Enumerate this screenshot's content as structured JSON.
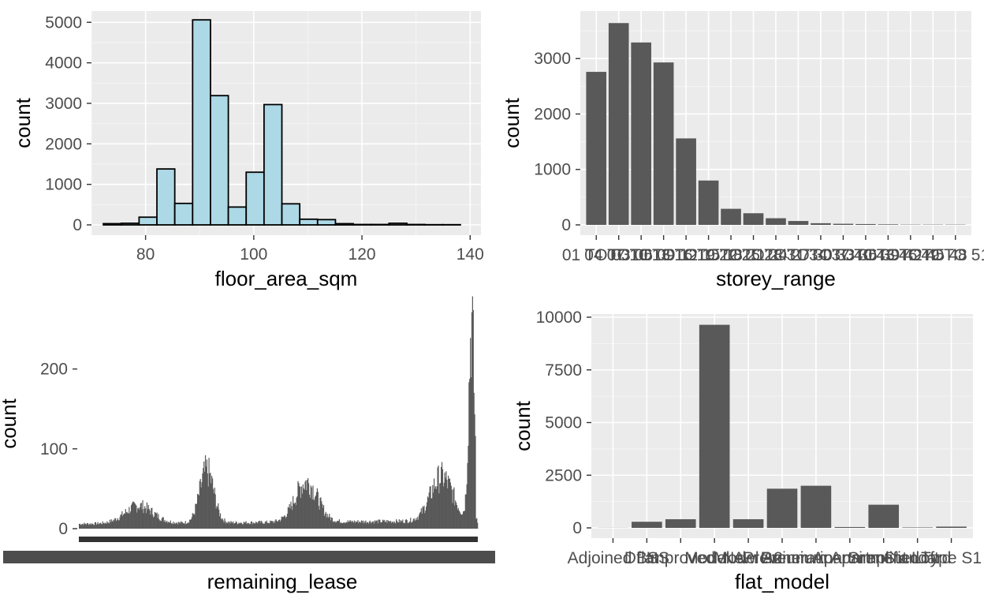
{
  "chart_data": [
    {
      "type": "bar",
      "subtype": "histogram",
      "xlabel": "floor_area_sqm",
      "ylabel": "count",
      "xlim": [
        70,
        142
      ],
      "ylim": [
        0,
        5200
      ],
      "x_ticks": [
        80,
        100,
        120,
        140
      ],
      "y_ticks": [
        0,
        1000,
        2000,
        3000,
        4000,
        5000
      ],
      "bin_width": 3.3,
      "bin_starts": [
        72.2,
        75.5,
        78.8,
        82.1,
        85.4,
        88.7,
        92.0,
        95.3,
        98.6,
        101.9,
        105.2,
        108.5,
        111.8,
        115.1,
        118.4,
        121.7,
        125.0,
        128.3,
        131.6,
        134.9
      ],
      "values": [
        30,
        40,
        190,
        1380,
        530,
        5060,
        3190,
        440,
        1300,
        2970,
        520,
        140,
        130,
        30,
        10,
        10,
        40,
        10,
        5,
        5
      ],
      "fill": "#add8e6",
      "stroke": "#000000",
      "grid": true
    },
    {
      "type": "bar",
      "xlabel": "storey_range",
      "ylabel": "count",
      "ylim": [
        0,
        3800
      ],
      "y_ticks": [
        0,
        1000,
        2000,
        3000
      ],
      "categories": [
        "01 TO 03",
        "04 TO 06",
        "07 TO 09",
        "10 TO 12",
        "13 TO 15",
        "16 TO 18",
        "19 TO 21",
        "22 TO 24",
        "25 TO 27",
        "28 TO 30",
        "31 TO 33",
        "34 TO 36",
        "37 TO 39",
        "40 TO 42",
        "43 TO 45",
        "46 TO 48",
        "49 TO 51"
      ],
      "values": [
        2760,
        3640,
        3290,
        2930,
        1560,
        800,
        290,
        210,
        120,
        70,
        30,
        20,
        15,
        10,
        5,
        5,
        5
      ],
      "fill": "#595959",
      "grid": true
    },
    {
      "type": "bar",
      "xlabel": "remaining_lease",
      "ylabel": "count",
      "ylim": [
        0,
        255
      ],
      "y_ticks": [
        0,
        100,
        200
      ],
      "fill": "#595959",
      "profile": {
        "bars": 560,
        "baseline": 6,
        "bumps": [
          {
            "center": 0.15,
            "width": 0.05,
            "height": 22
          },
          {
            "center": 0.32,
            "width": 0.025,
            "height": 65
          },
          {
            "center": 0.57,
            "width": 0.04,
            "height": 50
          },
          {
            "center": 0.91,
            "width": 0.04,
            "height": 55
          },
          {
            "center": 0.985,
            "width": 0.01,
            "height": 245
          }
        ]
      },
      "grid": false
    },
    {
      "type": "bar",
      "xlabel": "flat_model",
      "ylabel": "count",
      "ylim": [
        0,
        10000
      ],
      "y_ticks": [
        0,
        2500,
        5000,
        7500,
        10000
      ],
      "y_tick_labels": [
        "0",
        "2500",
        "5000",
        "7500",
        "10000"
      ],
      "categories": [
        "Adjoined flat",
        "DBSS",
        "Improved",
        "Model A",
        "Model A2",
        "New Generation",
        "Premium Apartment",
        "Premium Apartment Loft",
        "Simplified",
        "Standard",
        "Type S1"
      ],
      "values": [
        5,
        290,
        410,
        9640,
        410,
        1860,
        2000,
        40,
        1100,
        20,
        60
      ],
      "fill": "#595959",
      "grid": true
    }
  ]
}
